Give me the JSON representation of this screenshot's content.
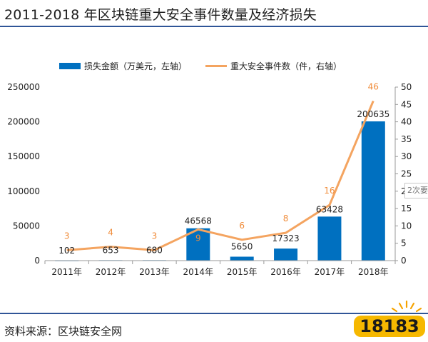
{
  "title": "2011-2018 年区块链重大安全事件数量及经济损失",
  "source": "资料来源：区块链安全网",
  "side_tab": "2次要",
  "logo_text": "18183",
  "chart_data": {
    "type": "bar+line",
    "categories": [
      "2011年",
      "2012年",
      "2013年",
      "2014年",
      "2015年",
      "2016年",
      "2017年",
      "2018年"
    ],
    "series": [
      {
        "name": "损失金额（万美元，左轴）",
        "type": "bar",
        "axis": "left",
        "color": "#0070c0",
        "values": [
          102,
          653,
          680,
          46568,
          5650,
          17323,
          63428,
          200635
        ],
        "labels": [
          "102",
          "653",
          "680",
          "46568",
          "5650",
          "17323",
          "63428",
          "200635"
        ]
      },
      {
        "name": "重大安全事件数（件，右轴）",
        "type": "line",
        "axis": "right",
        "color": "#f4a460",
        "values": [
          3,
          4,
          3,
          9,
          6,
          8,
          16,
          46
        ],
        "labels": [
          "3",
          "4",
          "3",
          "9",
          "6",
          "8",
          "16",
          "46"
        ]
      }
    ],
    "ylim_left": [
      0,
      250000
    ],
    "ylim_right": [
      0,
      50
    ],
    "yticks_left": [
      "0",
      "50000",
      "100000",
      "150000",
      "200000",
      "250000"
    ],
    "yticks_right": [
      "0",
      "5",
      "10",
      "15",
      "20",
      "25",
      "30",
      "35",
      "40",
      "45",
      "50"
    ],
    "legend": "top-center"
  }
}
